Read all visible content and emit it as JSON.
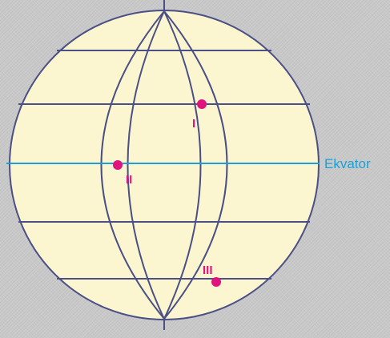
{
  "labels": {
    "equator": "Ekvator",
    "point_1": "I",
    "point_2": "II",
    "point_3": "III"
  },
  "colors": {
    "globe_fill": "#fbf6cf",
    "grid_lines": "#4a4f86",
    "equator_line": "#1aa0d8",
    "point_marker": "#e0147c"
  }
}
